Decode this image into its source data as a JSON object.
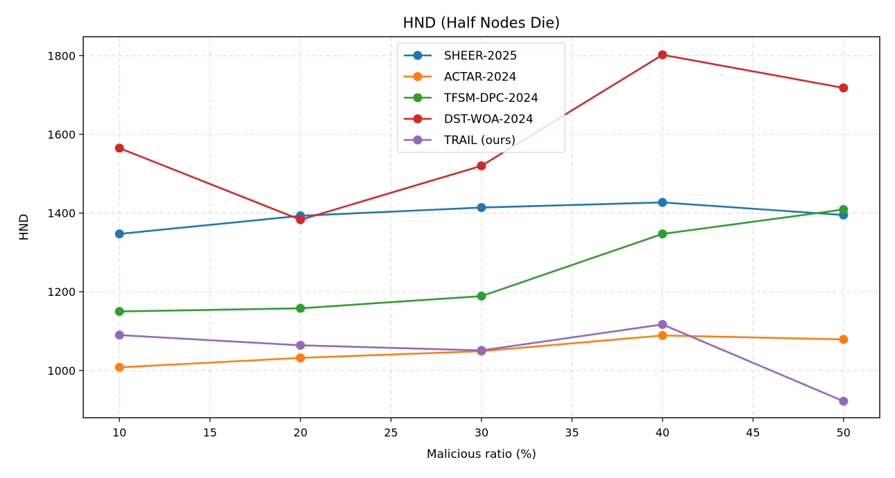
{
  "chart_data": {
    "type": "line",
    "title": "HND (Half Nodes Die)",
    "xlabel": "Malicious ratio (%)",
    "ylabel": "HND",
    "x": [
      10,
      20,
      30,
      40,
      50
    ],
    "xlim": [
      8,
      52
    ],
    "ylim": [
      880,
      1848
    ],
    "xticks": [
      10,
      15,
      20,
      25,
      30,
      35,
      40,
      45,
      50
    ],
    "yticks": [
      1000,
      1200,
      1400,
      1600,
      1800
    ],
    "grid": true,
    "legend_position": "top-center",
    "series": [
      {
        "name": "SHEER-2025",
        "color": "#1f77b4",
        "values": [
          1347,
          1393,
          1414,
          1427,
          1395
        ]
      },
      {
        "name": "ACTAR-2024",
        "color": "#ff7f0e",
        "values": [
          1008,
          1032,
          1049,
          1089,
          1079
        ]
      },
      {
        "name": "TFSM-DPC-2024",
        "color": "#2ca02c",
        "values": [
          1150,
          1158,
          1189,
          1347,
          1409
        ]
      },
      {
        "name": "DST-WOA-2024",
        "color": "#d62728",
        "values": [
          1565,
          1383,
          1520,
          1802,
          1718
        ]
      },
      {
        "name": "TRAIL (ours)",
        "color": "#9467bd",
        "values": [
          1090,
          1064,
          1051,
          1117,
          922
        ]
      }
    ]
  }
}
